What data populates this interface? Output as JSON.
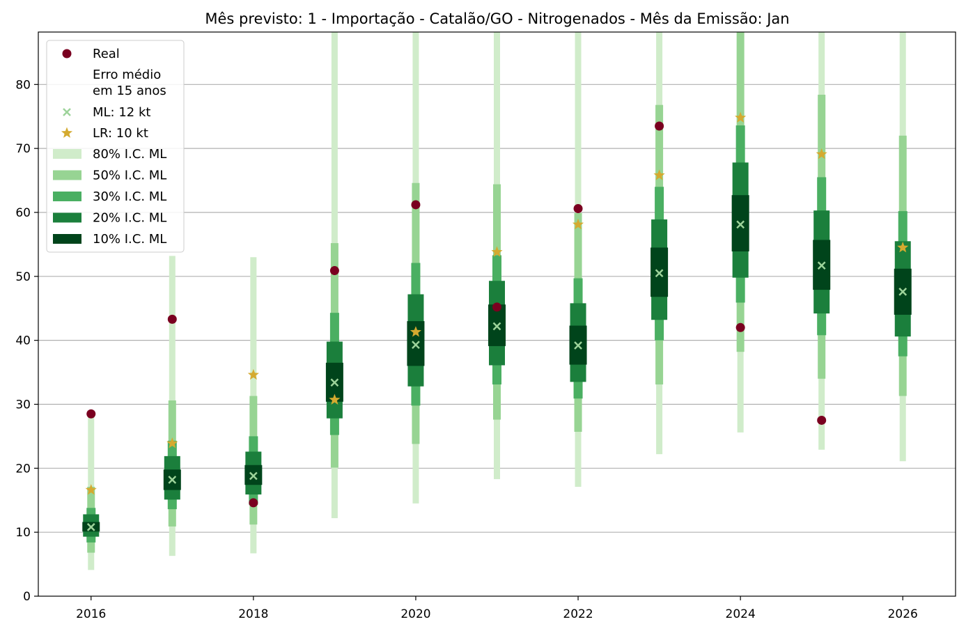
{
  "chart_data": {
    "type": "interval",
    "title": "Mês previsto: 1 - Importação - Catalão/GO - Nitrogenados - Mês da Emissão: Jan",
    "xlabel": "",
    "ylabel": "",
    "xlim": [
      2015.35,
      2026.65
    ],
    "ylim": [
      0,
      88.2
    ],
    "xticks": [
      "2016",
      "2018",
      "2020",
      "2022",
      "2024",
      "2026"
    ],
    "yticks": [
      "0",
      "10",
      "20",
      "30",
      "40",
      "50",
      "60",
      "70",
      "80"
    ],
    "grid": "horizontal",
    "legend_position": "top-left",
    "x": [
      2016,
      2017,
      2018,
      2019,
      2020,
      2021,
      2022,
      2023,
      2024,
      2025,
      2026
    ],
    "series": [
      {
        "name": "Real",
        "kind": "point",
        "marker": "circle",
        "color": "#7a0020",
        "values": [
          28.5,
          43.3,
          14.6,
          50.9,
          61.2,
          45.2,
          60.6,
          73.5,
          42.0,
          27.5,
          null
        ]
      },
      {
        "name": "ML: 12 kt",
        "kind": "point",
        "marker": "x",
        "color": "#9dd39a",
        "values": [
          10.8,
          18.2,
          18.8,
          33.4,
          39.3,
          42.2,
          39.2,
          50.5,
          58.1,
          51.7,
          47.6
        ]
      },
      {
        "name": "LR: 10 kt",
        "kind": "point",
        "marker": "star",
        "color": "#d4aa30",
        "values": [
          16.6,
          23.9,
          34.6,
          30.7,
          41.3,
          53.8,
          58.1,
          65.8,
          74.8,
          69.1,
          54.5
        ]
      }
    ],
    "intervals": [
      {
        "name": "80% I.C. ML",
        "color": "#d0ecca",
        "ranges": [
          [
            4.1,
            28.0
          ],
          [
            6.3,
            53.2
          ],
          [
            6.7,
            53.0
          ],
          [
            12.2,
            88.2
          ],
          [
            14.5,
            88.2
          ],
          [
            18.3,
            88.2
          ],
          [
            17.1,
            88.2
          ],
          [
            22.2,
            88.2
          ],
          [
            25.6,
            88.2
          ],
          [
            22.9,
            88.2
          ],
          [
            21.1,
            88.2
          ]
        ]
      },
      {
        "name": "50% I.C. ML",
        "color": "#97d493",
        "ranges": [
          [
            6.8,
            17.1
          ],
          [
            10.9,
            30.6
          ],
          [
            11.2,
            31.3
          ],
          [
            20.1,
            55.2
          ],
          [
            23.8,
            64.6
          ],
          [
            27.6,
            64.4
          ],
          [
            25.7,
            59.9
          ],
          [
            33.1,
            76.8
          ],
          [
            38.2,
            88.2
          ],
          [
            34.0,
            78.4
          ],
          [
            31.3,
            72.0
          ]
        ]
      },
      {
        "name": "30% I.C. ML",
        "color": "#4aaf62",
        "ranges": [
          [
            8.4,
            13.8
          ],
          [
            13.6,
            24.3
          ],
          [
            14.3,
            25.0
          ],
          [
            25.2,
            44.3
          ],
          [
            29.8,
            52.1
          ],
          [
            33.1,
            53.3
          ],
          [
            30.9,
            49.7
          ],
          [
            40.0,
            64.0
          ],
          [
            45.9,
            73.6
          ],
          [
            40.8,
            65.5
          ],
          [
            37.5,
            60.2
          ]
        ]
      },
      {
        "name": "20% I.C. ML",
        "color": "#1b7f3c",
        "ranges": [
          [
            9.3,
            12.8
          ],
          [
            15.1,
            21.9
          ],
          [
            15.9,
            22.6
          ],
          [
            27.8,
            39.8
          ],
          [
            32.8,
            47.2
          ],
          [
            36.1,
            49.3
          ],
          [
            33.5,
            45.8
          ],
          [
            43.2,
            58.9
          ],
          [
            49.8,
            67.8
          ],
          [
            44.2,
            60.3
          ],
          [
            40.6,
            55.5
          ]
        ]
      },
      {
        "name": "10% I.C. ML",
        "color": "#00441b",
        "ranges": [
          [
            10.1,
            11.6
          ],
          [
            16.6,
            19.8
          ],
          [
            17.4,
            20.5
          ],
          [
            30.4,
            36.5
          ],
          [
            36.0,
            43.0
          ],
          [
            39.1,
            45.6
          ],
          [
            36.2,
            42.3
          ],
          [
            46.8,
            54.5
          ],
          [
            53.9,
            62.7
          ],
          [
            47.9,
            55.7
          ],
          [
            44.0,
            51.2
          ]
        ]
      }
    ],
    "legend_note": "Erro médio em 15 anos",
    "legend_note_lines": [
      "Erro médio",
      "em 15 anos"
    ]
  }
}
